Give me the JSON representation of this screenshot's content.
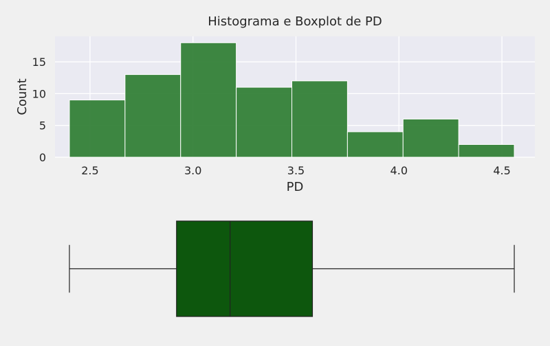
{
  "chart_data": [
    {
      "type": "bar",
      "title": "Histograma e Boxplot de PD",
      "xlabel": "PD",
      "ylabel": "Count",
      "xlim": [
        2.33,
        4.66
      ],
      "ylim": [
        0,
        19
      ],
      "xticks": [
        2.5,
        3.0,
        3.5,
        4.0,
        4.5
      ],
      "xtick_labels": [
        "2.5",
        "3.0",
        "3.5",
        "4.0",
        "4.5"
      ],
      "yticks": [
        0,
        5,
        10,
        15
      ],
      "ytick_labels": [
        "0",
        "5",
        "10",
        "15"
      ],
      "grid": true,
      "bins": [
        {
          "x0": 2.4,
          "x1": 2.67,
          "count": 9
        },
        {
          "x0": 2.67,
          "x1": 2.94,
          "count": 13
        },
        {
          "x0": 2.94,
          "x1": 3.21,
          "count": 18
        },
        {
          "x0": 3.21,
          "x1": 3.48,
          "count": 11
        },
        {
          "x0": 3.48,
          "x1": 3.75,
          "count": 12
        },
        {
          "x0": 3.75,
          "x1": 4.02,
          "count": 4
        },
        {
          "x0": 4.02,
          "x1": 4.29,
          "count": 6
        },
        {
          "x0": 4.29,
          "x1": 4.56,
          "count": 2
        }
      ],
      "color": "#2e7d32"
    },
    {
      "type": "box",
      "min": 2.4,
      "q1": 2.92,
      "median": 3.18,
      "q3": 3.58,
      "max": 4.56,
      "color": "#0d570d",
      "line_color": "#222222"
    }
  ]
}
